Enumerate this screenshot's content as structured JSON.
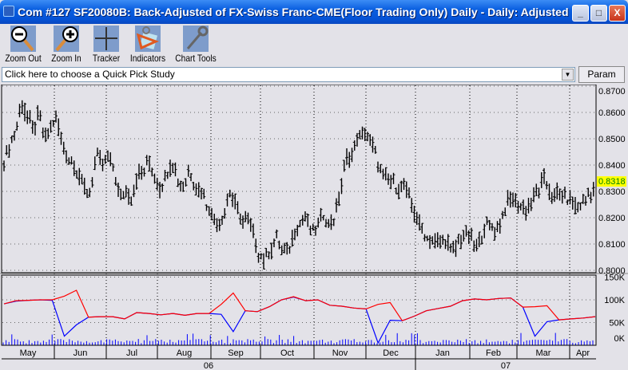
{
  "window": {
    "title": "Com #127 SF20080B: Back-Adjusted of FX-Swiss Franc-CME(Floor Trading Only) Daily - Daily: Adjusted",
    "min": "_",
    "max": "□",
    "close": "X"
  },
  "toolbar": [
    {
      "label": "Zoom Out",
      "icon": "zoom-out-icon"
    },
    {
      "label": "Zoom In",
      "icon": "zoom-in-icon"
    },
    {
      "label": "Tracker",
      "icon": "crosshair-icon"
    },
    {
      "label": "Indicators",
      "icon": "indicators-icon"
    },
    {
      "label": "Chart Tools",
      "icon": "wrench-icon"
    }
  ],
  "quick_pick": {
    "value": "Click here to choose a Quick Pick Study",
    "param_label": "Param"
  },
  "chart_data": {
    "type": "bar",
    "price_axis": {
      "ticks": [
        "0.8700",
        "0.8600",
        "0.8500",
        "0.8400",
        "0.8300",
        "0.8200",
        "0.8100",
        "0.8000"
      ],
      "ylim": [
        0.8,
        0.87
      ],
      "last_price": "0.8318",
      "last_price_color": "#ffff00"
    },
    "closes": [
      0.8407,
      0.8478,
      0.8528,
      0.863,
      0.859,
      0.853,
      0.859,
      0.85,
      0.855,
      0.858,
      0.849,
      0.842,
      0.841,
      0.8357,
      0.8306,
      0.8306,
      0.8437,
      0.8407,
      0.8437,
      0.8387,
      0.8266,
      0.8306,
      0.8276,
      0.8357,
      0.8377,
      0.8417,
      0.8346,
      0.8306,
      0.8367,
      0.8417,
      0.8336,
      0.8326,
      0.8377,
      0.8316,
      0.8306,
      0.8245,
      0.8205,
      0.8185,
      0.8215,
      0.8296,
      0.8235,
      0.8195,
      0.8185,
      0.8134,
      0.8054,
      0.8043,
      0.8074,
      0.8124,
      0.8074,
      0.8069,
      0.8134,
      0.8175,
      0.8205,
      0.8144,
      0.8175,
      0.8215,
      0.8175,
      0.8195,
      0.8296,
      0.8417,
      0.8437,
      0.8508,
      0.8523,
      0.8508,
      0.8447,
      0.8367,
      0.8346,
      0.8336,
      0.8311,
      0.8316,
      0.8276,
      0.8205,
      0.8155,
      0.8119,
      0.8114,
      0.8104,
      0.8124,
      0.8079,
      0.8084,
      0.8134,
      0.8144,
      0.8094,
      0.8104,
      0.8175,
      0.8165,
      0.8155,
      0.8205,
      0.8266,
      0.8266,
      0.8245,
      0.8225,
      0.8266,
      0.8296,
      0.8346,
      0.8306,
      0.8286,
      0.8296,
      0.8276,
      0.8255,
      0.8235,
      0.8255,
      0.8296,
      0.8318
    ],
    "lower_axis": {
      "ticks": [
        "150K",
        "100K",
        "50K",
        "0K"
      ],
      "ylim": [
        0,
        150
      ]
    },
    "series": [
      {
        "color": "#ff0000",
        "values": [
          91,
          98,
          99,
          100,
          100,
          108,
          121,
          62,
          63,
          63,
          58,
          72,
          70,
          67,
          70,
          66,
          70,
          70,
          90,
          115,
          76,
          74,
          85,
          100,
          107,
          98,
          100,
          88,
          86,
          82,
          80,
          90,
          94,
          54,
          64,
          76,
          81,
          86,
          98,
          102,
          100,
          103,
          104,
          84,
          85,
          87,
          56,
          58,
          60,
          63
        ]
      },
      {
        "color": "#0000ff",
        "values": [
          91,
          97,
          99,
          100,
          99,
          20,
          45,
          62,
          63,
          63,
          58,
          72,
          70,
          67,
          70,
          66,
          70,
          70,
          68,
          30,
          76,
          74,
          85,
          100,
          106,
          98,
          100,
          88,
          86,
          82,
          80,
          5,
          55,
          54,
          64,
          76,
          81,
          86,
          98,
          102,
          100,
          103,
          104,
          84,
          20,
          52,
          56,
          58,
          60,
          63
        ]
      }
    ],
    "months": [
      "May",
      "Jun",
      "Jul",
      "Aug",
      "Sep",
      "Oct",
      "Nov",
      "Dec",
      "Jan",
      "Feb",
      "Mar",
      "Apr"
    ],
    "years": [
      "06",
      "07"
    ]
  }
}
